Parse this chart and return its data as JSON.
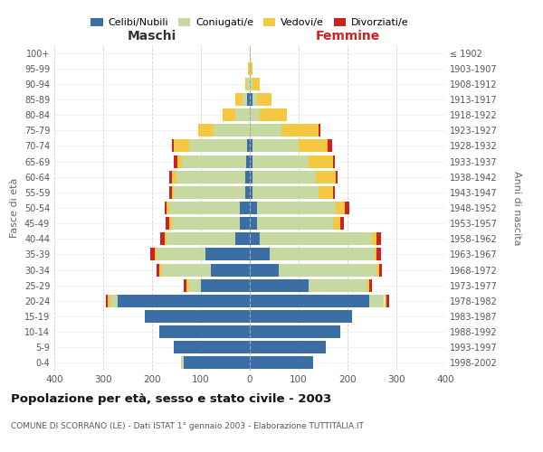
{
  "age_groups": [
    "0-4",
    "5-9",
    "10-14",
    "15-19",
    "20-24",
    "25-29",
    "30-34",
    "35-39",
    "40-44",
    "45-49",
    "50-54",
    "55-59",
    "60-64",
    "65-69",
    "70-74",
    "75-79",
    "80-84",
    "85-89",
    "90-94",
    "95-99",
    "100+"
  ],
  "birth_years": [
    "1998-2002",
    "1993-1997",
    "1988-1992",
    "1983-1987",
    "1978-1982",
    "1973-1977",
    "1968-1972",
    "1963-1967",
    "1958-1962",
    "1953-1957",
    "1948-1952",
    "1943-1947",
    "1938-1942",
    "1933-1937",
    "1928-1932",
    "1923-1927",
    "1918-1922",
    "1913-1917",
    "1908-1912",
    "1903-1907",
    "≤ 1902"
  ],
  "males": {
    "celibe": [
      135,
      155,
      185,
      215,
      270,
      100,
      80,
      90,
      30,
      20,
      20,
      10,
      10,
      8,
      5,
      0,
      0,
      5,
      0,
      0,
      0
    ],
    "coniugato": [
      5,
      0,
      0,
      0,
      15,
      25,
      100,
      100,
      140,
      140,
      145,
      145,
      140,
      130,
      120,
      75,
      30,
      10,
      5,
      0,
      0
    ],
    "vedovo": [
      0,
      0,
      0,
      0,
      5,
      5,
      5,
      5,
      5,
      5,
      5,
      5,
      10,
      10,
      30,
      30,
      25,
      15,
      5,
      3,
      0
    ],
    "divorziato": [
      0,
      0,
      0,
      0,
      5,
      5,
      5,
      8,
      8,
      8,
      5,
      5,
      5,
      8,
      5,
      0,
      0,
      0,
      0,
      0,
      0
    ]
  },
  "females": {
    "nubile": [
      130,
      155,
      185,
      210,
      245,
      120,
      60,
      40,
      20,
      15,
      15,
      5,
      5,
      5,
      5,
      0,
      0,
      5,
      0,
      0,
      0
    ],
    "coniugata": [
      0,
      0,
      0,
      0,
      30,
      120,
      200,
      215,
      230,
      155,
      160,
      135,
      130,
      115,
      95,
      65,
      20,
      10,
      5,
      0,
      0
    ],
    "vedova": [
      0,
      0,
      0,
      0,
      5,
      5,
      5,
      5,
      10,
      15,
      20,
      30,
      40,
      50,
      60,
      75,
      55,
      30,
      15,
      5,
      2
    ],
    "divorziata": [
      0,
      0,
      0,
      0,
      5,
      5,
      5,
      8,
      8,
      8,
      8,
      5,
      5,
      5,
      8,
      5,
      0,
      0,
      0,
      0,
      0
    ]
  },
  "colors": {
    "celibe": "#3a6ea5",
    "coniugato": "#c5d9a0",
    "vedovo": "#f5c842",
    "divorziato": "#cc2222"
  },
  "xlim": 400,
  "title": "Popolazione per età, sesso e stato civile - 2003",
  "subtitle": "COMUNE DI SCORRANO (LE) - Dati ISTAT 1° gennaio 2003 - Elaborazione TUTTITALIA.IT",
  "ylabel_left": "Fasce di età",
  "ylabel_right": "Anni di nascita",
  "xlabel_left": "Maschi",
  "xlabel_right": "Femmine",
  "bg_color": "#ffffff",
  "grid_color": "#cccccc"
}
